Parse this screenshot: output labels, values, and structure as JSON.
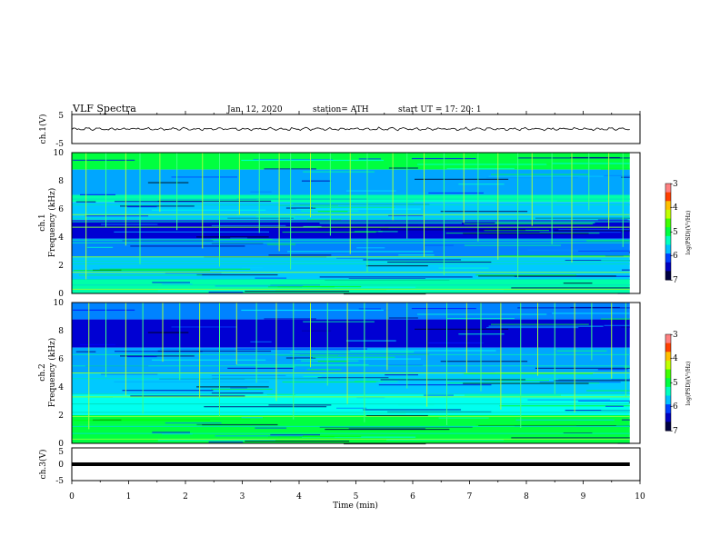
{
  "header": {
    "title": "VLF  Spectra",
    "date": "Jan.  12,  2020",
    "station": "station= ATH",
    "start": "start  UT  =    17: 20: 1"
  },
  "chart_data": [
    {
      "type": "line",
      "name": "ch1-waveform",
      "ylabel": "ch.1(V)",
      "ylim": [
        -5,
        5
      ],
      "y_ticks": [
        "5",
        "-5"
      ],
      "xlim": [
        0,
        10
      ],
      "samples": [
        0.2,
        -0.3,
        0.5,
        -0.8,
        1.0,
        -0.4,
        0.3,
        -0.9,
        0.6,
        -0.2,
        0.8,
        -0.6,
        0.1,
        -0.5,
        0.9,
        -0.3,
        0.4,
        -0.7,
        0.2,
        -0.1,
        0.7,
        -0.8,
        0.5,
        -0.4,
        0.3,
        -0.6,
        0.9,
        -0.2,
        0.1,
        -0.5,
        0.6,
        -0.9,
        0.4,
        -0.3,
        0.8,
        -0.1,
        0.2,
        -0.7,
        0.5,
        -0.4,
        0.6,
        -0.2,
        0.3,
        -0.8,
        0.9,
        -0.5,
        0.1,
        -0.3,
        0.7,
        -0.6
      ]
    },
    {
      "type": "heatmap",
      "name": "ch1-spectrogram",
      "xlim": [
        0,
        10
      ],
      "ylim": [
        0,
        10
      ],
      "xlabel": "Time  (min)",
      "ylabel": "Frequency  (kHz)",
      "channel_label": "ch.1",
      "y_ticks": [
        "0",
        "2",
        "4",
        "6",
        "8",
        "10"
      ],
      "colorbar": {
        "label": "log(PSD)(V²/Hz)",
        "range": [
          -7,
          -3
        ],
        "ticks": [
          "-3",
          "-4",
          "-5",
          "-6",
          "-7"
        ],
        "colors": [
          "#000000",
          "#000080",
          "#0000ff",
          "#0080ff",
          "#00ffff",
          "#00ff80",
          "#00ff00",
          "#80ff00",
          "#ffff00",
          "#ff8000",
          "#ff0000",
          "#ffffff"
        ]
      },
      "freq_bands": [
        {
          "from": 8.8,
          "to": 10.0,
          "level": -5.0
        },
        {
          "from": 7.0,
          "to": 8.8,
          "level": -5.8
        },
        {
          "from": 6.5,
          "to": 7.0,
          "level": -5.3
        },
        {
          "from": 5.2,
          "to": 6.5,
          "level": -5.7
        },
        {
          "from": 3.9,
          "to": 5.2,
          "level": -6.4
        },
        {
          "from": 2.6,
          "to": 3.9,
          "level": -5.9
        },
        {
          "from": 1.0,
          "to": 2.6,
          "level": -5.7
        },
        {
          "from": 0.0,
          "to": 1.0,
          "level": -5.3
        }
      ],
      "tonal_lines_khz": [
        0.3,
        0.6,
        1.0,
        1.5,
        2.1,
        2.3,
        2.6,
        3.6,
        3.8,
        4.7,
        5.1,
        5.3,
        5.6,
        6.3,
        6.7
      ],
      "sferic_times_min": [
        0.25,
        0.6,
        0.95,
        1.2,
        1.55,
        1.85,
        2.3,
        2.6,
        2.95,
        3.3,
        3.65,
        3.85,
        4.2,
        4.55,
        4.9,
        5.2,
        5.65,
        5.9,
        6.2,
        6.55,
        6.9,
        7.15,
        7.5,
        7.85,
        8.1,
        8.45,
        8.8,
        9.1,
        9.45,
        9.7
      ]
    },
    {
      "type": "heatmap",
      "name": "ch2-spectrogram",
      "xlim": [
        0,
        10
      ],
      "ylim": [
        0,
        10
      ],
      "xlabel": "Time  (min)",
      "ylabel": "Frequency  (kHz)",
      "channel_label": "ch.2",
      "y_ticks": [
        "0",
        "2",
        "4",
        "6",
        "8",
        "10"
      ],
      "colorbar": {
        "label": "log(PSD)(V²/Hz)",
        "range": [
          -7,
          -3
        ],
        "ticks": [
          "-3",
          "-4",
          "-5",
          "-6",
          "-7"
        ],
        "colors": [
          "#000000",
          "#000080",
          "#0000ff",
          "#0080ff",
          "#00ffff",
          "#00ff80",
          "#00ff00",
          "#80ff00",
          "#ffff00",
          "#ff8000",
          "#ff0000",
          "#ffffff"
        ]
      },
      "freq_bands": [
        {
          "from": 8.8,
          "to": 10.0,
          "level": -5.9
        },
        {
          "from": 6.8,
          "to": 8.8,
          "level": -6.4
        },
        {
          "from": 5.0,
          "to": 6.8,
          "level": -5.8
        },
        {
          "from": 3.5,
          "to": 5.0,
          "level": -5.7
        },
        {
          "from": 2.0,
          "to": 3.5,
          "level": -5.5
        },
        {
          "from": 0.0,
          "to": 2.0,
          "level": -5.0
        }
      ],
      "tonal_lines_khz": [
        0.3,
        0.7,
        1.2,
        1.9,
        2.2,
        2.8,
        3.3,
        3.5,
        4.6,
        5.0,
        5.5,
        6.3
      ],
      "sferic_times_min": [
        0.3,
        0.6,
        0.95,
        1.25,
        1.6,
        1.9,
        2.25,
        2.6,
        2.9,
        3.25,
        3.6,
        3.9,
        4.2,
        4.5,
        4.85,
        5.15,
        5.55,
        5.9,
        6.25,
        6.6,
        6.95,
        7.2,
        7.55,
        7.9,
        8.2,
        8.5,
        8.85,
        9.15,
        9.5,
        9.75
      ]
    },
    {
      "type": "line",
      "name": "ch3-waveform",
      "ylabel": "ch.3(V)",
      "ylim": [
        -5,
        5
      ],
      "y_ticks": [
        "5",
        "0",
        "-5"
      ],
      "xlim": [
        0,
        10
      ],
      "level": 0
    }
  ],
  "xaxis": {
    "label": "Time  (min)",
    "ticks": [
      "0",
      "1",
      "2",
      "3",
      "4",
      "5",
      "6",
      "7",
      "8",
      "9",
      "10"
    ],
    "data_end_min": 9.82
  }
}
